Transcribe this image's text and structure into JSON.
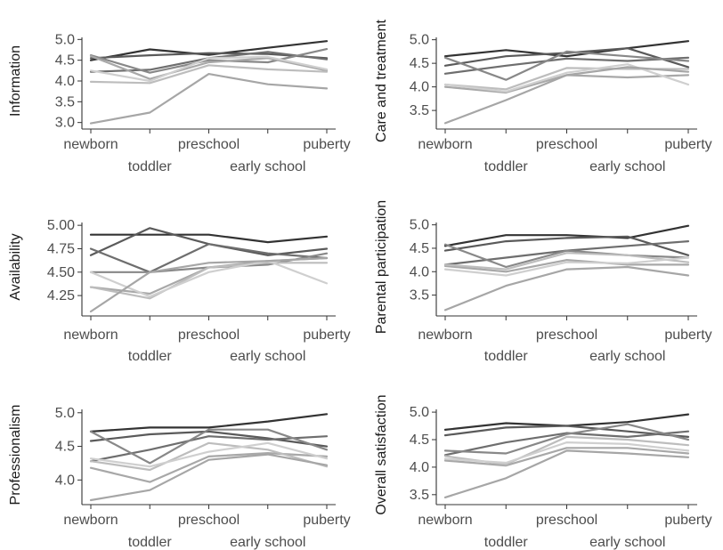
{
  "chart_data": [
    {
      "type": "line",
      "ylabel": "Information",
      "categories": [
        "newborn",
        "toddler",
        "preschool",
        "early school",
        "puberty"
      ],
      "yticks": [
        3.0,
        3.5,
        4.0,
        4.5,
        5.0
      ],
      "ylim": [
        2.95,
        5.05
      ],
      "series": [
        {
          "color": "#333333",
          "values": [
            4.5,
            4.76,
            4.63,
            4.8,
            4.96
          ]
        },
        {
          "color": "#5a5a5a",
          "values": [
            4.55,
            4.62,
            4.67,
            4.65,
            4.55
          ]
        },
        {
          "color": "#6e6e6e",
          "values": [
            4.22,
            4.27,
            4.55,
            4.7,
            4.52
          ]
        },
        {
          "color": "#888888",
          "values": [
            4.62,
            4.2,
            4.5,
            4.45,
            4.77
          ]
        },
        {
          "color": "#a8a8a8",
          "values": [
            4.6,
            4.05,
            4.45,
            4.55,
            4.25
          ]
        },
        {
          "color": "#bdbdbd",
          "values": [
            3.98,
            3.95,
            4.38,
            4.28,
            4.22
          ]
        },
        {
          "color": "#cfcfcf",
          "values": [
            4.25,
            4.0,
            4.55,
            4.58,
            4.28
          ]
        },
        {
          "color": "#a6a6a6",
          "values": [
            2.98,
            3.24,
            4.17,
            3.92,
            3.82
          ]
        }
      ]
    },
    {
      "type": "line",
      "ylabel": "Care and treatment",
      "categories": [
        "newborn",
        "toddler",
        "preschool",
        "early school",
        "puberty"
      ],
      "yticks": [
        3.5,
        4.0,
        4.5,
        5.0
      ],
      "ylim": [
        3.2,
        5.05
      ],
      "series": [
        {
          "color": "#333333",
          "values": [
            4.65,
            4.78,
            4.65,
            4.82,
            4.97
          ]
        },
        {
          "color": "#5a5a5a",
          "values": [
            4.45,
            4.65,
            4.72,
            4.82,
            4.42
          ]
        },
        {
          "color": "#6e6e6e",
          "values": [
            4.28,
            4.45,
            4.6,
            4.55,
            4.62
          ]
        },
        {
          "color": "#888888",
          "values": [
            4.62,
            4.15,
            4.75,
            4.65,
            4.55
          ]
        },
        {
          "color": "#a8a8a8",
          "values": [
            4.0,
            3.88,
            4.25,
            4.2,
            4.25
          ]
        },
        {
          "color": "#bdbdbd",
          "values": [
            4.05,
            3.95,
            4.4,
            4.38,
            4.38
          ]
        },
        {
          "color": "#cfcfcf",
          "values": [
            4.05,
            3.9,
            4.3,
            4.48,
            4.05
          ]
        },
        {
          "color": "#a6a6a6",
          "values": [
            3.23,
            3.72,
            4.25,
            4.42,
            4.32
          ]
        }
      ]
    },
    {
      "type": "line",
      "ylabel": "Availability",
      "categories": [
        "newborn",
        "toddler",
        "preschool",
        "early school",
        "puberty"
      ],
      "yticks": [
        4.25,
        4.5,
        4.75,
        5.0
      ],
      "ylim": [
        4.08,
        5.03
      ],
      "series": [
        {
          "color": "#333333",
          "values": [
            4.9,
            4.9,
            4.9,
            4.82,
            4.88
          ]
        },
        {
          "color": "#5a5a5a",
          "values": [
            4.68,
            4.97,
            4.8,
            4.68,
            4.75
          ]
        },
        {
          "color": "#6e6e6e",
          "values": [
            4.75,
            4.5,
            4.8,
            4.7,
            4.65
          ]
        },
        {
          "color": "#888888",
          "values": [
            4.5,
            4.5,
            4.55,
            4.58,
            4.7
          ]
        },
        {
          "color": "#a8a8a8",
          "values": [
            4.34,
            4.27,
            4.55,
            4.62,
            4.65
          ]
        },
        {
          "color": "#bdbdbd",
          "values": [
            4.34,
            4.22,
            4.55,
            4.6,
            4.6
          ]
        },
        {
          "color": "#cfcfcf",
          "values": [
            4.5,
            4.24,
            4.5,
            4.62,
            4.38
          ]
        },
        {
          "color": "#a6a6a6",
          "values": [
            4.08,
            4.5,
            4.6,
            4.62,
            4.65
          ]
        }
      ]
    },
    {
      "type": "line",
      "ylabel": "Parental participation",
      "categories": [
        "newborn",
        "toddler",
        "preschool",
        "early school",
        "puberty"
      ],
      "yticks": [
        3.5,
        4.0,
        4.5,
        5.0
      ],
      "ylim": [
        3.15,
        5.05
      ],
      "series": [
        {
          "color": "#333333",
          "values": [
            4.55,
            4.78,
            4.78,
            4.72,
            4.98
          ]
        },
        {
          "color": "#5a5a5a",
          "values": [
            4.45,
            4.65,
            4.72,
            4.75,
            4.35
          ]
        },
        {
          "color": "#6e6e6e",
          "values": [
            4.15,
            4.3,
            4.45,
            4.55,
            4.65
          ]
        },
        {
          "color": "#888888",
          "values": [
            4.58,
            4.1,
            4.45,
            4.35,
            4.3
          ]
        },
        {
          "color": "#a8a8a8",
          "values": [
            4.12,
            4.0,
            4.25,
            4.15,
            4.15
          ]
        },
        {
          "color": "#bdbdbd",
          "values": [
            4.15,
            4.05,
            4.4,
            4.35,
            4.2
          ]
        },
        {
          "color": "#cfcfcf",
          "values": [
            4.05,
            3.92,
            4.2,
            4.18,
            4.3
          ]
        },
        {
          "color": "#a6a6a6",
          "values": [
            3.18,
            3.7,
            4.05,
            4.1,
            3.92
          ]
        }
      ]
    },
    {
      "type": "line",
      "ylabel": "Professionalism",
      "categories": [
        "newborn",
        "toddler",
        "preschool",
        "early school",
        "puberty"
      ],
      "yticks": [
        4.0,
        4.5,
        5.0
      ],
      "ylim": [
        3.7,
        5.05
      ],
      "series": [
        {
          "color": "#333333",
          "values": [
            4.72,
            4.78,
            4.78,
            4.87,
            4.98
          ]
        },
        {
          "color": "#5a5a5a",
          "values": [
            4.58,
            4.68,
            4.72,
            4.62,
            4.5
          ]
        },
        {
          "color": "#6e6e6e",
          "values": [
            4.28,
            4.45,
            4.65,
            4.6,
            4.65
          ]
        },
        {
          "color": "#888888",
          "values": [
            4.72,
            4.25,
            4.75,
            4.75,
            4.45
          ]
        },
        {
          "color": "#a8a8a8",
          "values": [
            4.18,
            3.97,
            4.35,
            4.4,
            4.35
          ]
        },
        {
          "color": "#bdbdbd",
          "values": [
            4.28,
            4.15,
            4.55,
            4.45,
            4.2
          ]
        },
        {
          "color": "#cfcfcf",
          "values": [
            4.32,
            4.2,
            4.42,
            4.55,
            4.32
          ]
        },
        {
          "color": "#a6a6a6",
          "values": [
            3.7,
            3.85,
            4.3,
            4.38,
            4.22
          ]
        }
      ]
    },
    {
      "type": "line",
      "ylabel": "Overall satisfaction",
      "categories": [
        "newborn",
        "toddler",
        "preschool",
        "early school",
        "puberty"
      ],
      "yticks": [
        3.5,
        4.0,
        4.5,
        5.0
      ],
      "ylim": [
        3.4,
        5.05
      ],
      "series": [
        {
          "color": "#333333",
          "values": [
            4.68,
            4.8,
            4.75,
            4.82,
            4.96
          ]
        },
        {
          "color": "#5a5a5a",
          "values": [
            4.58,
            4.72,
            4.75,
            4.65,
            4.55
          ]
        },
        {
          "color": "#6e6e6e",
          "values": [
            4.22,
            4.45,
            4.62,
            4.55,
            4.65
          ]
        },
        {
          "color": "#888888",
          "values": [
            4.3,
            4.25,
            4.6,
            4.78,
            4.5
          ]
        },
        {
          "color": "#a8a8a8",
          "values": [
            4.12,
            4.03,
            4.35,
            4.35,
            4.25
          ]
        },
        {
          "color": "#bdbdbd",
          "values": [
            4.2,
            4.05,
            4.55,
            4.5,
            4.4
          ]
        },
        {
          "color": "#cfcfcf",
          "values": [
            4.15,
            4.08,
            4.45,
            4.42,
            4.3
          ]
        },
        {
          "color": "#a6a6a6",
          "values": [
            3.45,
            3.8,
            4.3,
            4.25,
            4.18
          ]
        }
      ]
    }
  ]
}
